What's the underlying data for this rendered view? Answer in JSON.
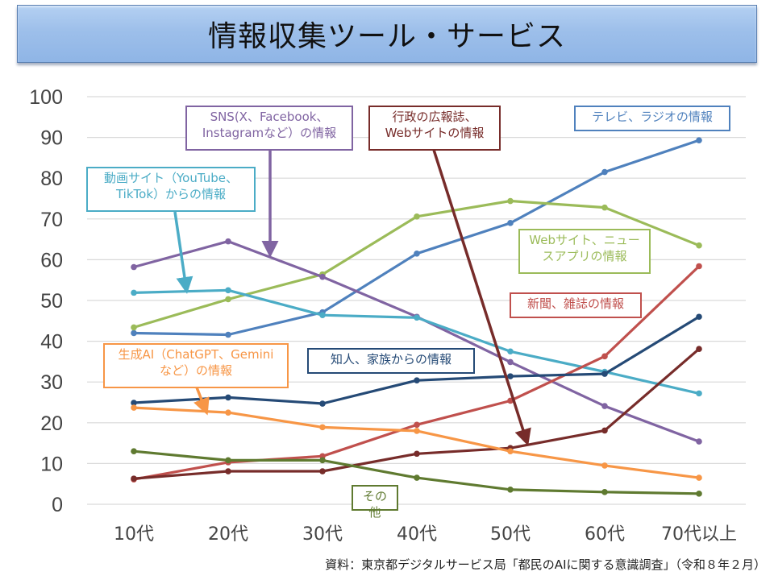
{
  "header": {
    "title": "情報収集ツール・サービス"
  },
  "source": "資料：東京都デジタルサービス局「都民のAIに関する意識調査」（令和８年２月）",
  "chart_data": {
    "type": "line",
    "title": "情報収集ツール・サービス",
    "xlabel": "",
    "ylabel": "",
    "categories": [
      "10代",
      "20代",
      "30代",
      "40代",
      "50代",
      "60代",
      "70代以上"
    ],
    "ylim": [
      0,
      100
    ],
    "yticks": [
      0,
      10,
      20,
      30,
      40,
      50,
      60,
      70,
      80,
      90,
      100
    ],
    "grid": true,
    "legend": "callout-labels",
    "series": [
      {
        "name": "テレビ、ラジオの情報",
        "color": "#4f81bd",
        "values": [
          42.0,
          41.6,
          47.1,
          61.5,
          69.0,
          81.5,
          89.3
        ]
      },
      {
        "name": "Webサイト、ニュースアプリの情報",
        "color": "#9bbb59",
        "values": [
          43.4,
          50.3,
          56.4,
          70.6,
          74.4,
          72.8,
          63.5
        ]
      },
      {
        "name": "SNS（X、Facebook、Instagramなど）の情報",
        "color": "#8064a2",
        "values": [
          58.2,
          64.5,
          55.8,
          46.0,
          34.9,
          24.1,
          15.4
        ]
      },
      {
        "name": "動画サイト（YouTube、TikTok）からの情報",
        "color": "#4bacc6",
        "values": [
          51.9,
          52.5,
          46.4,
          45.8,
          37.5,
          32.5,
          27.2
        ]
      },
      {
        "name": "新聞、雑誌の情報",
        "color": "#c0504d",
        "values": [
          6.1,
          10.3,
          11.8,
          19.5,
          25.4,
          36.3,
          58.4
        ]
      },
      {
        "name": "行政の広報誌、Webサイトの情報",
        "color": "#772c2a",
        "values": [
          6.3,
          8.1,
          8.1,
          12.4,
          13.8,
          18.1,
          38.1
        ]
      },
      {
        "name": "知人、家族からの情報",
        "color": "#254a76",
        "values": [
          24.9,
          26.2,
          24.7,
          30.4,
          31.4,
          32.0,
          46.0
        ]
      },
      {
        "name": "生成AI（ChatGPT、Geminiなど）の情報",
        "color": "#f79646",
        "values": [
          23.7,
          22.5,
          18.9,
          18.0,
          13.0,
          9.5,
          6.5
        ]
      },
      {
        "name": "その他",
        "color": "#5f7a30",
        "values": [
          13.0,
          10.8,
          10.8,
          6.5,
          3.6,
          3.0,
          2.6
        ]
      }
    ],
    "annotations": [
      {
        "text": "SNS(X、Facebook、\nInstagramなど）の情報",
        "color": "#8064a2"
      },
      {
        "text": "行政の広報誌、\nWebサイトの情報",
        "color": "#772c2a"
      },
      {
        "text": "テレビ、ラジオの情報",
        "color": "#4f81bd"
      },
      {
        "text": "動画サイト（YouTube、\nTikTok）からの情報",
        "color": "#4bacc6"
      },
      {
        "text": "Webサイト、ニュー\nスアプリの情報",
        "color": "#9bbb59"
      },
      {
        "text": "新聞、雑誌の情報",
        "color": "#c0504d"
      },
      {
        "text": "生成AI（ChatGPT、Gemini\nなど）の情報",
        "color": "#f79646"
      },
      {
        "text": "知人、家族からの情報",
        "color": "#254a76"
      },
      {
        "text": "その他",
        "color": "#5f7a30"
      }
    ]
  }
}
